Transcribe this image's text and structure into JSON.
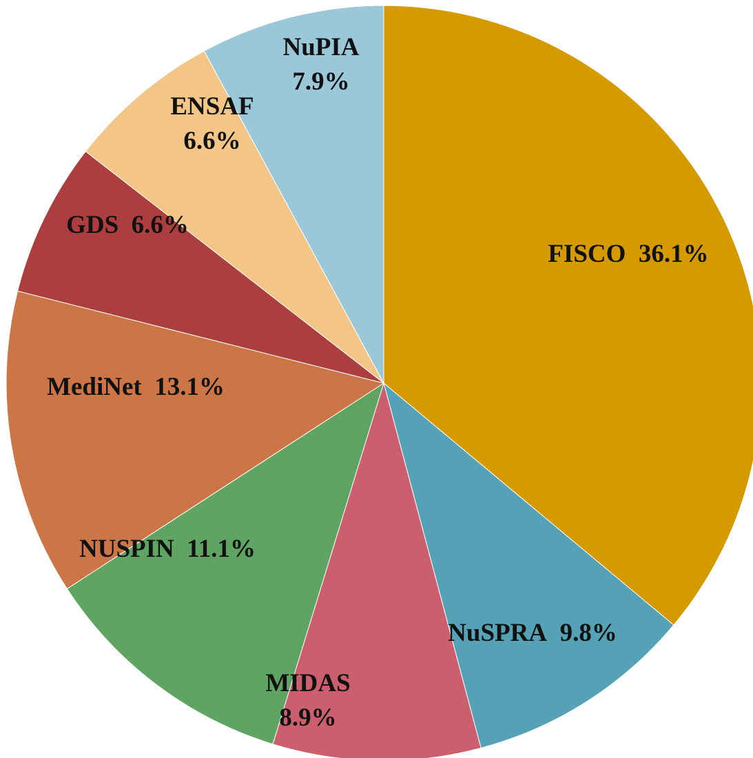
{
  "chart_data": {
    "type": "pie",
    "categories": [
      "FISCO",
      "NuSPRA",
      "MIDAS",
      "NUSPIN",
      "MediNet",
      "GDS",
      "ENSAF",
      "NuPIA"
    ],
    "values": [
      36.1,
      9.8,
      8.9,
      11.1,
      13.1,
      6.6,
      6.6,
      7.9
    ],
    "value_labels": [
      "36.1%",
      "9.8%",
      "8.9%",
      "11.1%",
      "13.1%",
      "6.6%",
      "6.6%",
      "7.9%"
    ],
    "colors": [
      "#d49a00",
      "#55a2b6",
      "#cc5f6e",
      "#5fa462",
      "#cc7647",
      "#ad3e3f",
      "#f3c688",
      "#9bc8d8"
    ]
  }
}
